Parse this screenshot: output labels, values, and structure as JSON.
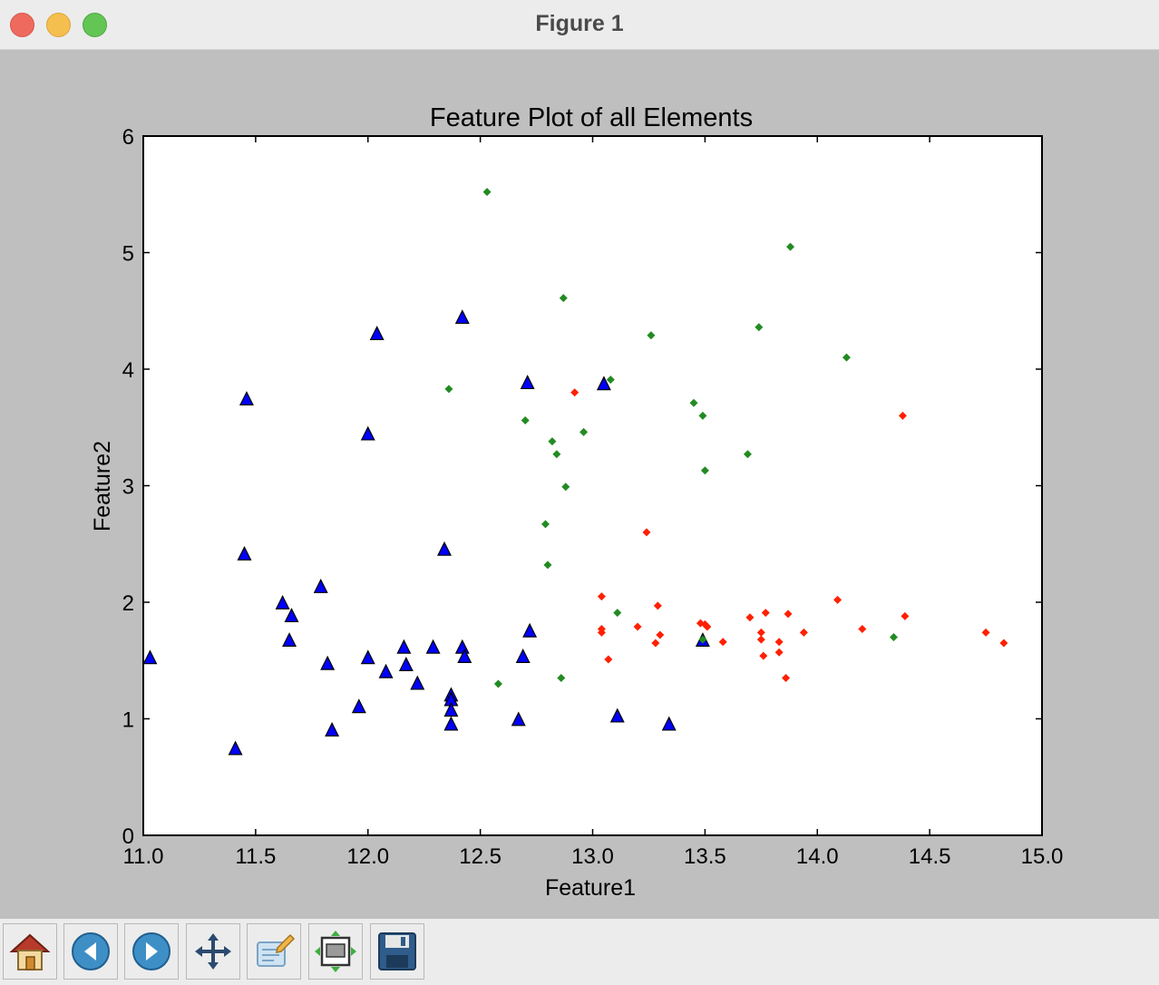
{
  "window": {
    "title": "Figure 1"
  },
  "toolbar": {
    "buttons": [
      {
        "name": "home-button",
        "icon": "home-icon"
      },
      {
        "name": "back-button",
        "icon": "arrow-left-icon"
      },
      {
        "name": "forward-button",
        "icon": "arrow-right-icon"
      },
      {
        "name": "pan-button",
        "icon": "move-icon"
      },
      {
        "name": "zoom-button",
        "icon": "zoom-rect-icon"
      },
      {
        "name": "subplots-button",
        "icon": "subplots-icon"
      },
      {
        "name": "save-button",
        "icon": "floppy-disk-icon"
      }
    ]
  },
  "chart_data": {
    "type": "scatter",
    "title": "Feature Plot of all Elements",
    "xlabel": "Feature1",
    "ylabel": "Feature2",
    "xlim": [
      11.0,
      15.0
    ],
    "ylim": [
      0,
      6
    ],
    "xticks": [
      "11.0",
      "11.5",
      "12.0",
      "12.5",
      "13.0",
      "13.5",
      "14.0",
      "14.5",
      "15.0"
    ],
    "yticks": [
      "0",
      "1",
      "2",
      "3",
      "4",
      "5",
      "6"
    ],
    "grid": false,
    "series": [
      {
        "marker": "triangle",
        "color": "#0000ff",
        "points": [
          [
            11.03,
            1.52
          ],
          [
            11.41,
            0.74
          ],
          [
            11.45,
            2.41
          ],
          [
            11.46,
            3.74
          ],
          [
            11.62,
            1.99
          ],
          [
            11.65,
            1.67
          ],
          [
            11.66,
            1.88
          ],
          [
            11.79,
            2.13
          ],
          [
            11.82,
            1.47
          ],
          [
            11.84,
            0.9
          ],
          [
            11.96,
            1.1
          ],
          [
            12.0,
            1.52
          ],
          [
            12.0,
            3.44
          ],
          [
            12.04,
            4.3
          ],
          [
            12.08,
            1.4
          ],
          [
            12.16,
            1.61
          ],
          [
            12.17,
            1.46
          ],
          [
            12.22,
            1.3
          ],
          [
            12.29,
            1.61
          ],
          [
            12.34,
            2.45
          ],
          [
            12.37,
            1.2
          ],
          [
            12.37,
            1.16
          ],
          [
            12.37,
            1.07
          ],
          [
            12.37,
            0.95
          ],
          [
            12.42,
            1.61
          ],
          [
            12.42,
            4.44
          ],
          [
            12.43,
            1.53
          ],
          [
            12.67,
            0.99
          ],
          [
            12.69,
            1.53
          ],
          [
            12.71,
            3.88
          ],
          [
            12.72,
            1.75
          ],
          [
            13.05,
            3.87
          ],
          [
            13.11,
            1.02
          ],
          [
            13.34,
            0.95
          ],
          [
            13.49,
            1.67
          ]
        ]
      },
      {
        "marker": "diamond",
        "color": "#228b22",
        "points": [
          [
            12.36,
            3.83
          ],
          [
            12.53,
            5.52
          ],
          [
            12.58,
            1.3
          ],
          [
            12.7,
            3.56
          ],
          [
            12.79,
            2.67
          ],
          [
            12.8,
            2.32
          ],
          [
            12.82,
            3.38
          ],
          [
            12.84,
            3.27
          ],
          [
            12.86,
            1.35
          ],
          [
            12.87,
            4.61
          ],
          [
            12.88,
            2.99
          ],
          [
            12.96,
            3.46
          ],
          [
            13.08,
            3.91
          ],
          [
            13.11,
            1.91
          ],
          [
            13.26,
            4.29
          ],
          [
            13.45,
            3.71
          ],
          [
            13.49,
            1.68
          ],
          [
            13.49,
            3.6
          ],
          [
            13.5,
            3.13
          ],
          [
            13.69,
            3.27
          ],
          [
            13.74,
            4.36
          ],
          [
            13.88,
            5.05
          ],
          [
            14.13,
            4.1
          ],
          [
            14.34,
            1.7
          ]
        ]
      },
      {
        "marker": "diamond",
        "color": "#ff2000",
        "points": [
          [
            12.92,
            3.8
          ],
          [
            13.04,
            2.05
          ],
          [
            13.04,
            1.77
          ],
          [
            13.04,
            1.74
          ],
          [
            13.07,
            1.51
          ],
          [
            13.2,
            1.79
          ],
          [
            13.24,
            2.6
          ],
          [
            13.28,
            1.65
          ],
          [
            13.29,
            1.97
          ],
          [
            13.3,
            1.72
          ],
          [
            13.48,
            1.82
          ],
          [
            13.5,
            1.81
          ],
          [
            13.51,
            1.79
          ],
          [
            13.58,
            1.66
          ],
          [
            13.7,
            1.87
          ],
          [
            13.75,
            1.74
          ],
          [
            13.75,
            1.68
          ],
          [
            13.76,
            1.54
          ],
          [
            13.77,
            1.91
          ],
          [
            13.83,
            1.57
          ],
          [
            13.83,
            1.66
          ],
          [
            13.86,
            1.35
          ],
          [
            13.87,
            1.9
          ],
          [
            13.94,
            1.74
          ],
          [
            14.09,
            2.02
          ],
          [
            14.2,
            1.77
          ],
          [
            14.38,
            3.6
          ],
          [
            14.39,
            1.88
          ],
          [
            14.75,
            1.74
          ],
          [
            14.83,
            1.65
          ]
        ]
      }
    ]
  }
}
